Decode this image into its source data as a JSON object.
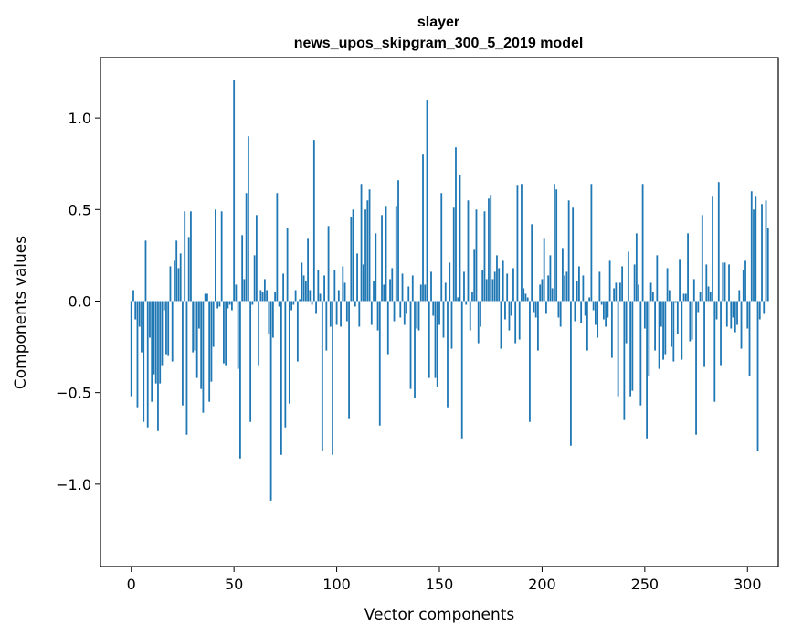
{
  "chart_data": {
    "type": "bar",
    "title": "slayer",
    "subtitle": "news_upos_skipgram_300_5_2019 model",
    "xlabel": "Vector components",
    "ylabel": "Components values",
    "xlim": [
      -15,
      315
    ],
    "ylim": [
      -1.45,
      1.33
    ],
    "xticks": [
      0,
      50,
      100,
      150,
      200,
      250,
      300
    ],
    "xtick_labels": [
      "0",
      "50",
      "100",
      "150",
      "200",
      "250",
      "300"
    ],
    "yticks": [
      -1.0,
      -0.5,
      0.0,
      0.5,
      1.0
    ],
    "ytick_labels": [
      "−1.0",
      "−0.5",
      "0.0",
      "0.5",
      "1.0"
    ],
    "grid": false,
    "bar_color": "#1f77b4",
    "values": [
      -0.52,
      0.06,
      -0.1,
      -0.58,
      -0.14,
      -0.28,
      -0.66,
      0.33,
      -0.69,
      -0.2,
      -0.55,
      -0.4,
      -0.45,
      -0.71,
      -0.45,
      -0.35,
      -0.05,
      -0.29,
      -0.3,
      0.19,
      -0.33,
      0.22,
      0.33,
      0.18,
      0.26,
      -0.57,
      0.49,
      -0.73,
      0.35,
      0.49,
      -0.28,
      -0.27,
      -0.42,
      -0.15,
      -0.48,
      -0.61,
      0.04,
      0.04,
      -0.55,
      -0.44,
      -0.25,
      0.5,
      -0.04,
      -0.03,
      0.49,
      -0.34,
      -0.35,
      -0.04,
      -0.02,
      -0.05,
      1.21,
      0.09,
      -0.37,
      -0.86,
      0.36,
      0.12,
      0.59,
      0.9,
      -0.66,
      -0.02,
      0.25,
      0.47,
      -0.35,
      0.06,
      0.05,
      0.12,
      0.06,
      -0.18,
      -1.09,
      -0.2,
      0.05,
      0.59,
      -0.03,
      -0.84,
      0.15,
      -0.69,
      0.4,
      -0.56,
      -0.05,
      -0.02,
      0.06,
      -0.33,
      0.01,
      0.21,
      0.14,
      0.11,
      0.34,
      0.06,
      -0.02,
      0.88,
      -0.07,
      0.17,
      0.04,
      -0.82,
      0.14,
      -0.27,
      0.41,
      -0.14,
      -0.84,
      0.17,
      -0.13,
      0.06,
      -0.14,
      0.19,
      0.1,
      -0.11,
      -0.64,
      0.46,
      0.5,
      -0.03,
      0.26,
      -0.14,
      0.64,
      0.2,
      0.5,
      0.55,
      0.61,
      -0.13,
      0.11,
      0.37,
      -0.16,
      -0.68,
      0.47,
      0.09,
      0.52,
      -0.29,
      0.12,
      0.18,
      -0.11,
      0.52,
      0.66,
      -0.09,
      0.15,
      -0.13,
      -0.07,
      0.08,
      -0.48,
      0.14,
      -0.53,
      -0.15,
      -0.16,
      0.09,
      0.8,
      0.09,
      1.1,
      -0.42,
      0.16,
      -0.08,
      -0.42,
      -0.47,
      -0.13,
      0.59,
      -0.2,
      0.1,
      -0.58,
      0.21,
      -0.26,
      0.51,
      0.84,
      0.02,
      0.69,
      -0.75,
      0.16,
      -0.02,
      0.55,
      -0.16,
      0.05,
      0.28,
      0.5,
      -0.23,
      -0.14,
      0.17,
      0.49,
      0.12,
      0.56,
      0.58,
      0.12,
      0.16,
      0.25,
      0.18,
      -0.26,
      0.22,
      -0.1,
      0.15,
      -0.16,
      -0.08,
      0.18,
      -0.23,
      0.63,
      -0.21,
      0.64,
      0.07,
      0.04,
      0.02,
      -0.66,
      0.42,
      -0.06,
      -0.09,
      -0.27,
      0.09,
      0.12,
      0.34,
      -0.07,
      0.14,
      0.25,
      0.07,
      0.64,
      0.61,
      -0.09,
      -0.14,
      0.29,
      0.14,
      0.16,
      0.55,
      -0.79,
      0.51,
      -0.11,
      0.11,
      0.19,
      -0.12,
      0.14,
      -0.08,
      -0.27,
      0.02,
      0.64,
      -0.05,
      -0.13,
      -0.2,
      0.16,
      -0.02,
      -0.1,
      -0.14,
      -0.09,
      0.22,
      -0.31,
      0.07,
      0.1,
      -0.52,
      0.1,
      0.19,
      -0.65,
      -0.23,
      0.27,
      -0.52,
      -0.49,
      0.2,
      0.37,
      0.09,
      -0.57,
      0.64,
      -0.15,
      -0.75,
      -0.41,
      0.1,
      0.05,
      -0.27,
      0.25,
      -0.37,
      -0.14,
      -0.32,
      -0.29,
      0.18,
      0.06,
      -0.25,
      -0.33,
      -0.01,
      -0.18,
      0.23,
      -0.32,
      0.04,
      0.04,
      0.37,
      -0.22,
      -0.21,
      0.12,
      -0.73,
      -0.06,
      0.05,
      0.47,
      -0.36,
      0.2,
      0.08,
      0.05,
      0.57,
      -0.55,
      -0.1,
      0.65,
      -0.35,
      0.21,
      0.21,
      -0.14,
      0.2,
      -0.15,
      -0.09,
      -0.17,
      -0.13,
      0.06,
      -0.26,
      0.17,
      0.22,
      -0.15,
      -0.41,
      0.6,
      0.5,
      0.57,
      -0.82,
      -0.1,
      0.53,
      -0.07,
      0.55,
      0.4
    ]
  }
}
